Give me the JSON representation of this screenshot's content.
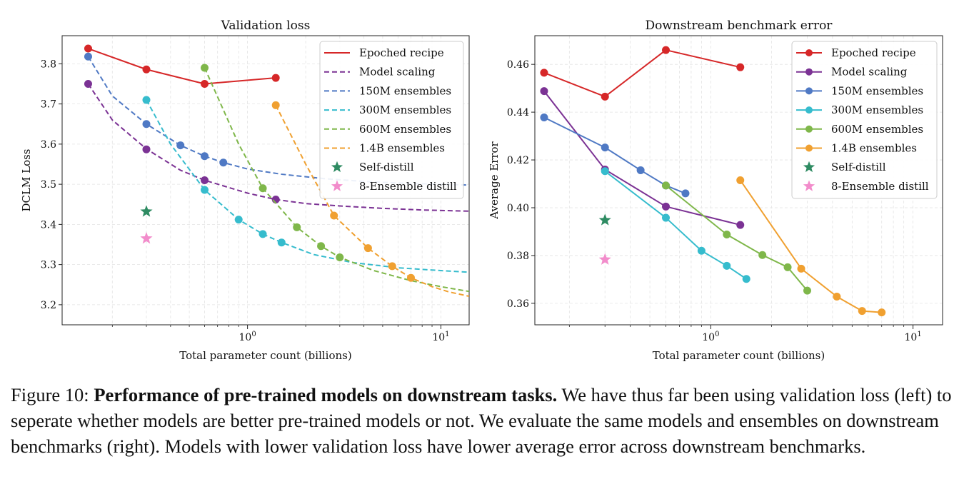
{
  "chart_data": [
    {
      "type": "line",
      "title": "Validation loss",
      "xlabel": "Total parameter count (billions)",
      "ylabel": "DCLM Loss",
      "x_scale": "log",
      "xlim": [
        0.11,
        14
      ],
      "ylim": [
        3.15,
        3.87
      ],
      "yticks": [
        3.2,
        3.3,
        3.4,
        3.5,
        3.6,
        3.7,
        3.8
      ],
      "xticks": [
        {
          "value": 1,
          "label": "10^0"
        },
        {
          "value": 10,
          "label": "10^1"
        }
      ],
      "grid": true,
      "legend_position": "top-right",
      "series": [
        {
          "name": "Epoched recipe",
          "color": "#d62728",
          "style": "solid",
          "markers": true,
          "points": [
            [
              0.15,
              3.838
            ],
            [
              0.3,
              3.786
            ],
            [
              0.6,
              3.75
            ],
            [
              1.4,
              3.765
            ]
          ]
        },
        {
          "name": "Model scaling",
          "color": "#7b3294",
          "style": "dashed",
          "markers": true,
          "points": [
            [
              0.15,
              3.75
            ],
            [
              0.3,
              3.587
            ],
            [
              0.6,
              3.51
            ],
            [
              1.4,
              3.462
            ]
          ],
          "fit": [
            [
              0.15,
              3.75
            ],
            [
              0.2,
              3.66
            ],
            [
              0.3,
              3.588
            ],
            [
              0.45,
              3.535
            ],
            [
              0.6,
              3.51
            ],
            [
              1.0,
              3.478
            ],
            [
              1.4,
              3.462
            ],
            [
              2,
              3.452
            ],
            [
              3,
              3.446
            ],
            [
              5,
              3.44
            ],
            [
              8,
              3.436
            ],
            [
              14,
              3.433
            ]
          ]
        },
        {
          "name": "150M ensembles",
          "color": "#4f79c4",
          "style": "dashed",
          "markers": true,
          "points": [
            [
              0.15,
              3.818
            ],
            [
              0.3,
              3.65
            ],
            [
              0.45,
              3.597
            ],
            [
              0.6,
              3.57
            ],
            [
              0.75,
              3.554
            ]
          ],
          "fit": [
            [
              0.15,
              3.818
            ],
            [
              0.2,
              3.72
            ],
            [
              0.3,
              3.65
            ],
            [
              0.45,
              3.597
            ],
            [
              0.6,
              3.57
            ],
            [
              0.75,
              3.554
            ],
            [
              1.0,
              3.538
            ],
            [
              1.5,
              3.525
            ],
            [
              2.5,
              3.514
            ],
            [
              4,
              3.507
            ],
            [
              7,
              3.502
            ],
            [
              14,
              3.498
            ]
          ]
        },
        {
          "name": "300M ensembles",
          "color": "#36bccd",
          "style": "dashed",
          "markers": true,
          "points": [
            [
              0.3,
              3.71
            ],
            [
              0.6,
              3.486
            ],
            [
              0.9,
              3.412
            ],
            [
              1.2,
              3.376
            ],
            [
              1.5,
              3.355
            ]
          ],
          "fit": [
            [
              0.3,
              3.71
            ],
            [
              0.4,
              3.6
            ],
            [
              0.6,
              3.486
            ],
            [
              0.9,
              3.412
            ],
            [
              1.2,
              3.376
            ],
            [
              1.5,
              3.355
            ],
            [
              2.2,
              3.325
            ],
            [
              3.5,
              3.305
            ],
            [
              6,
              3.292
            ],
            [
              10,
              3.285
            ],
            [
              14,
              3.281
            ]
          ]
        },
        {
          "name": "600M ensembles",
          "color": "#7fb74a",
          "style": "dashed",
          "markers": true,
          "points": [
            [
              0.6,
              3.79
            ],
            [
              1.2,
              3.49
            ],
            [
              1.8,
              3.393
            ],
            [
              2.4,
              3.346
            ],
            [
              3.0,
              3.318
            ]
          ],
          "fit": [
            [
              0.6,
              3.79
            ],
            [
              0.9,
              3.6
            ],
            [
              1.2,
              3.49
            ],
            [
              1.8,
              3.393
            ],
            [
              2.4,
              3.346
            ],
            [
              3.0,
              3.318
            ],
            [
              4.5,
              3.285
            ],
            [
              7,
              3.26
            ],
            [
              10,
              3.245
            ],
            [
              14,
              3.233
            ]
          ]
        },
        {
          "name": "1.4B ensembles",
          "color": "#f0a030",
          "style": "dashed",
          "markers": true,
          "points": [
            [
              1.4,
              3.697
            ],
            [
              2.8,
              3.422
            ],
            [
              4.2,
              3.341
            ],
            [
              5.6,
              3.296
            ],
            [
              7.0,
              3.267
            ]
          ],
          "fit": [
            [
              1.4,
              3.697
            ],
            [
              2.0,
              3.55
            ],
            [
              2.8,
              3.422
            ],
            [
              4.2,
              3.341
            ],
            [
              5.6,
              3.296
            ],
            [
              7.0,
              3.267
            ],
            [
              9,
              3.245
            ],
            [
              11,
              3.232
            ],
            [
              14,
              3.221
            ]
          ]
        },
        {
          "name": "Self-distill",
          "color": "#2e8b62",
          "style": "marker-only",
          "marker": "star",
          "points": [
            [
              0.3,
              3.432
            ]
          ]
        },
        {
          "name": "8-Ensemble distill",
          "color": "#f28ccb",
          "style": "marker-only",
          "marker": "star",
          "points": [
            [
              0.3,
              3.365
            ]
          ]
        }
      ]
    },
    {
      "type": "line",
      "title": "Downstream benchmark error",
      "xlabel": "Total parameter count (billions)",
      "ylabel": "Average Error",
      "x_scale": "log",
      "xlim": [
        0.135,
        14
      ],
      "ylim": [
        0.351,
        0.472
      ],
      "yticks": [
        0.36,
        0.38,
        0.4,
        0.42,
        0.44,
        0.46
      ],
      "xticks": [
        {
          "value": 1,
          "label": "10^0"
        },
        {
          "value": 10,
          "label": "10^1"
        }
      ],
      "grid": true,
      "legend_position": "top-right",
      "series": [
        {
          "name": "Epoched recipe",
          "color": "#d62728",
          "style": "solid",
          "markers": true,
          "points": [
            [
              0.15,
              0.4565
            ],
            [
              0.3,
              0.4465
            ],
            [
              0.6,
              0.466
            ],
            [
              1.4,
              0.4588
            ]
          ]
        },
        {
          "name": "Model scaling",
          "color": "#7b3294",
          "style": "solid",
          "markers": true,
          "points": [
            [
              0.15,
              0.4488
            ],
            [
              0.3,
              0.416
            ],
            [
              0.6,
              0.4005
            ],
            [
              1.4,
              0.3928
            ]
          ]
        },
        {
          "name": "150M ensembles",
          "color": "#4f79c4",
          "style": "solid",
          "markers": true,
          "points": [
            [
              0.15,
              0.4378
            ],
            [
              0.3,
              0.4252
            ],
            [
              0.45,
              0.4157
            ],
            [
              0.6,
              0.4093
            ],
            [
              0.75,
              0.406
            ]
          ]
        },
        {
          "name": "300M ensembles",
          "color": "#36bccd",
          "style": "solid",
          "markers": true,
          "points": [
            [
              0.3,
              0.4153
            ],
            [
              0.6,
              0.3958
            ],
            [
              0.9,
              0.382
            ],
            [
              1.2,
              0.3757
            ],
            [
              1.5,
              0.3702
            ]
          ]
        },
        {
          "name": "600M ensembles",
          "color": "#7fb74a",
          "style": "solid",
          "markers": true,
          "points": [
            [
              0.6,
              0.4093
            ],
            [
              1.2,
              0.3888
            ],
            [
              1.8,
              0.3802
            ],
            [
              2.4,
              0.3751
            ],
            [
              3.0,
              0.3653
            ]
          ]
        },
        {
          "name": "1.4B ensembles",
          "color": "#f0a030",
          "style": "solid",
          "markers": true,
          "points": [
            [
              1.4,
              0.4115
            ],
            [
              2.8,
              0.3745
            ],
            [
              4.2,
              0.3628
            ],
            [
              5.6,
              0.3568
            ],
            [
              7.0,
              0.3562
            ]
          ]
        },
        {
          "name": "Self-distill",
          "color": "#2e8b62",
          "style": "marker-only",
          "marker": "star",
          "points": [
            [
              0.3,
              0.3948
            ]
          ]
        },
        {
          "name": "8-Ensemble distill",
          "color": "#f28ccb",
          "style": "marker-only",
          "marker": "star",
          "points": [
            [
              0.3,
              0.3783
            ]
          ]
        }
      ]
    }
  ],
  "caption": {
    "label": "Figure 10:",
    "bold": "Performance of pre-trained models on downstream tasks.",
    "text": "We have thus far been using validation loss (left) to seperate whether models are better pre-trained models or not. We evaluate the same models and ensembles on downstream benchmarks (right). Models with lower validation loss have lower average error across downstream benchmarks."
  }
}
